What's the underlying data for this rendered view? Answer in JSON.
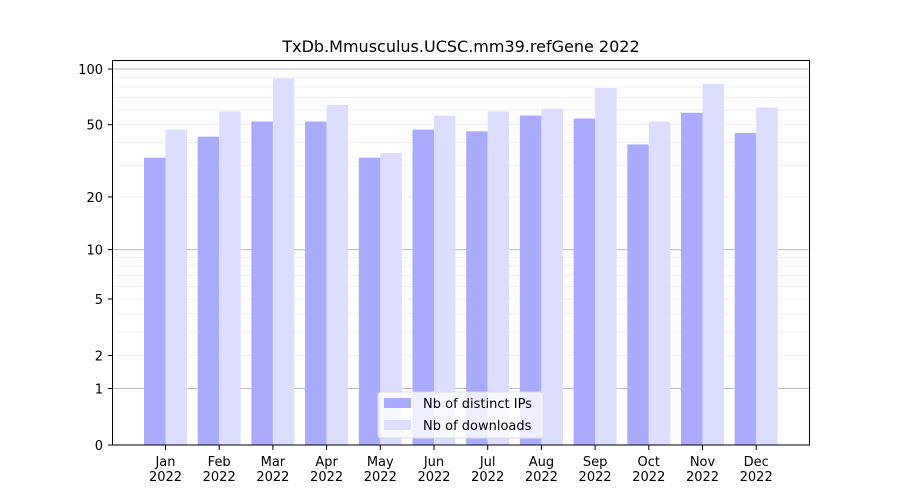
{
  "chart_data": {
    "type": "bar",
    "title": "TxDb.Mmusculus.UCSC.mm39.refGene 2022",
    "xlabel": "",
    "ylabel": "",
    "yscale": "log(1+y)",
    "ylim": [
      0,
      110
    ],
    "yticks": [
      0,
      1,
      2,
      5,
      10,
      20,
      50,
      100
    ],
    "ytick_labels": [
      "0",
      "1",
      "2",
      "5",
      "10",
      "20",
      "50",
      "100"
    ],
    "grid": true,
    "legend_position": "bottom-center",
    "categories": [
      "Jan\n2022",
      "Feb\n2022",
      "Mar\n2022",
      "Apr\n2022",
      "May\n2022",
      "Jun\n2022",
      "Jul\n2022",
      "Aug\n2022",
      "Sep\n2022",
      "Oct\n2022",
      "Nov\n2022",
      "Dec\n2022"
    ],
    "series": [
      {
        "name": "Nb of distinct IPs",
        "color": "#aaaaff",
        "values": [
          33,
          43,
          52,
          52,
          33,
          47,
          46,
          56,
          54,
          39,
          58,
          45
        ]
      },
      {
        "name": "Nb of downloads",
        "color": "#ddddff",
        "values": [
          47,
          59,
          89,
          64,
          35,
          56,
          59,
          61,
          79,
          52,
          83,
          62
        ]
      }
    ]
  }
}
